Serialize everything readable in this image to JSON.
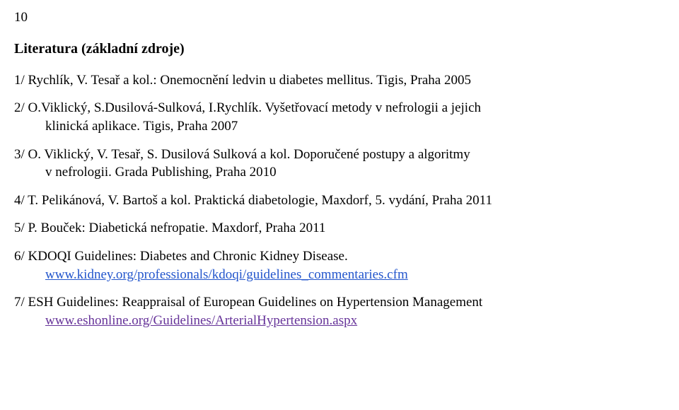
{
  "page_number": "10",
  "heading": "Literatura (základní zdroje)",
  "refs": [
    {
      "line1": "1/ Rychlík, V. Tesař a kol.: Onemocnění ledvin u diabetes mellitus. Tigis, Praha 2005"
    },
    {
      "line1": "2/ O.Viklický, S.Dusilová-Sulková, I.Rychlík. Vyšetřovací metody v nefrologii a jejich",
      "line2": "klinická aplikace. Tigis, Praha 2007"
    },
    {
      "line1": "3/ O. Viklický, V. Tesař, S. Dusilová Sulková a kol. Doporučené postupy a algoritmy",
      "line2": "v nefrologii. Grada Publishing, Praha 2010"
    },
    {
      "line1": "4/ T. Pelikánová, V. Bartoš a kol. Praktická diabetologie, Maxdorf, 5. vydání, Praha 2011"
    },
    {
      "line1": "5/ P. Bouček: Diabetická nefropatie. Maxdorf, Praha 2011"
    },
    {
      "line1": "6/ KDOQI Guidelines: Diabetes and Chronic Kidney Disease.",
      "link": "www.kidney.org/professionals/kdoqi/guidelines_commentaries.cfm",
      "link_color": "blue"
    },
    {
      "line1": "7/ ESH Guidelines: Reappraisal of European Guidelines on Hypertension Management",
      "link": "www.eshonline.org/Guidelines/ArterialHypertension.aspx",
      "link_color": "purple"
    }
  ],
  "colors": {
    "text": "#000000",
    "background": "#ffffff",
    "link_blue": "#2255cc",
    "link_purple": "#663399"
  },
  "typography": {
    "font_family": "Times New Roman",
    "body_fontsize_pt": 14,
    "heading_fontsize_pt": 15,
    "heading_weight": "bold"
  }
}
